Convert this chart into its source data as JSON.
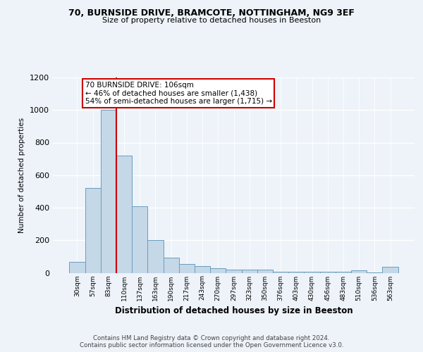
{
  "title1": "70, BURNSIDE DRIVE, BRAMCOTE, NOTTINGHAM, NG9 3EF",
  "title2": "Size of property relative to detached houses in Beeston",
  "xlabel": "Distribution of detached houses by size in Beeston",
  "ylabel": "Number of detached properties",
  "categories": [
    "30sqm",
    "57sqm",
    "83sqm",
    "110sqm",
    "137sqm",
    "163sqm",
    "190sqm",
    "217sqm",
    "243sqm",
    "270sqm",
    "297sqm",
    "323sqm",
    "350sqm",
    "376sqm",
    "403sqm",
    "430sqm",
    "456sqm",
    "483sqm",
    "510sqm",
    "536sqm",
    "563sqm"
  ],
  "values": [
    65,
    520,
    1000,
    720,
    410,
    200,
    95,
    55,
    40,
    30,
    20,
    20,
    18,
    6,
    5,
    5,
    5,
    5,
    13,
    3,
    35
  ],
  "bar_color": "#c5d8e8",
  "bar_edge_color": "#6a9dbf",
  "vline_color": "#cc0000",
  "annotation_text": "70 BURNSIDE DRIVE: 106sqm\n← 46% of detached houses are smaller (1,438)\n54% of semi-detached houses are larger (1,715) →",
  "annotation_box_color": "white",
  "annotation_box_edge_color": "#cc0000",
  "ylim": [
    0,
    1200
  ],
  "yticks": [
    0,
    200,
    400,
    600,
    800,
    1000,
    1200
  ],
  "footer1": "Contains HM Land Registry data © Crown copyright and database right 2024.",
  "footer2": "Contains public sector information licensed under the Open Government Licence v3.0.",
  "bg_color": "#edf3f9"
}
